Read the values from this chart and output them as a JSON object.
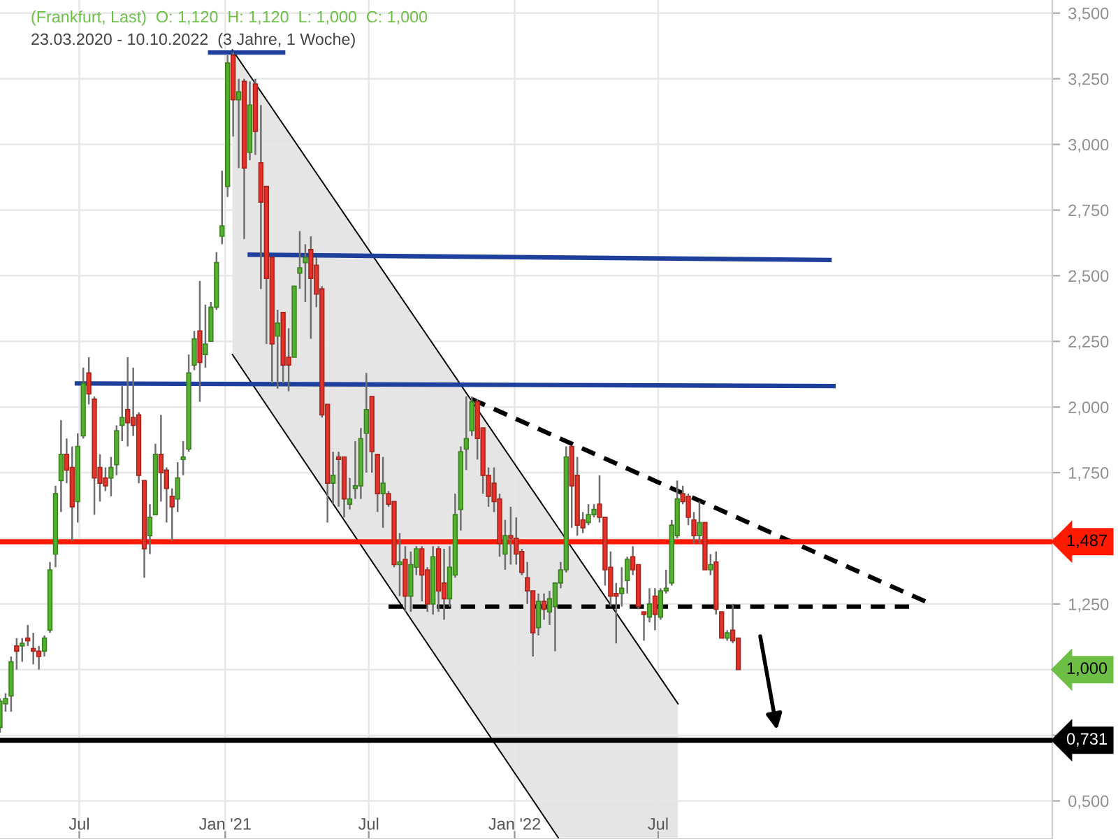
{
  "chart_data": {
    "type": "candlestick",
    "title": "(Frankfurt, Last)  O: 1,120  H: 1,120  L: 1,000  C: 1,000",
    "subtitle": "23.03.2020 - 10.10.2022  (3 Jahre, 1 Woche)",
    "x": [
      "2020-03-23",
      "2020-03-30",
      "2020-04-06",
      "2020-04-13",
      "2020-04-20",
      "2020-04-27",
      "2020-05-04",
      "2020-05-11",
      "2020-05-18",
      "2020-05-25",
      "2020-06-01",
      "2020-06-08",
      "2020-06-15",
      "2020-06-22",
      "2020-06-29",
      "2020-07-06",
      "2020-07-13",
      "2020-07-20",
      "2020-07-27",
      "2020-08-03",
      "2020-08-10",
      "2020-08-17",
      "2020-08-24",
      "2020-08-31",
      "2020-09-07",
      "2020-09-14",
      "2020-09-21",
      "2020-09-28",
      "2020-10-05",
      "2020-10-12",
      "2020-10-19",
      "2020-10-26",
      "2020-11-02",
      "2020-11-09",
      "2020-11-16",
      "2020-11-23",
      "2020-11-30",
      "2020-12-07",
      "2020-12-14",
      "2020-12-21",
      "2020-12-28",
      "2021-01-04",
      "2021-01-11",
      "2021-01-18",
      "2021-01-25",
      "2021-02-01",
      "2021-02-08",
      "2021-02-15",
      "2021-02-22",
      "2021-03-01",
      "2021-03-08",
      "2021-03-15",
      "2021-03-22",
      "2021-03-29",
      "2021-04-05",
      "2021-04-12",
      "2021-04-19",
      "2021-04-26",
      "2021-05-03",
      "2021-05-10",
      "2021-05-17",
      "2021-05-24",
      "2021-05-31",
      "2021-06-07",
      "2021-06-14",
      "2021-06-21",
      "2021-06-28",
      "2021-07-05",
      "2021-07-12",
      "2021-07-19",
      "2021-07-26",
      "2021-08-02",
      "2021-08-09",
      "2021-08-16",
      "2021-08-23",
      "2021-08-30",
      "2021-09-06",
      "2021-09-13",
      "2021-09-20",
      "2021-09-27",
      "2021-10-04",
      "2021-10-11",
      "2021-10-18",
      "2021-10-25",
      "2021-11-01",
      "2021-11-08",
      "2021-11-15",
      "2021-11-22",
      "2021-11-29",
      "2021-12-06",
      "2021-12-13",
      "2021-12-20",
      "2021-12-27",
      "2022-01-03",
      "2022-01-10",
      "2022-01-17",
      "2022-01-24",
      "2022-01-31",
      "2022-02-07",
      "2022-02-14",
      "2022-02-21",
      "2022-02-28",
      "2022-03-07",
      "2022-03-14",
      "2022-03-21",
      "2022-03-28",
      "2022-04-04",
      "2022-04-11",
      "2022-04-18",
      "2022-04-25",
      "2022-05-02",
      "2022-05-09",
      "2022-05-16",
      "2022-05-23",
      "2022-05-30",
      "2022-06-06",
      "2022-06-13",
      "2022-06-20",
      "2022-06-27",
      "2022-07-04",
      "2022-07-11",
      "2022-07-18",
      "2022-07-25",
      "2022-08-01",
      "2022-08-08",
      "2022-08-15",
      "2022-08-22",
      "2022-08-29",
      "2022-09-05",
      "2022-09-12",
      "2022-09-19",
      "2022-09-26",
      "2022-10-03",
      "2022-10-10"
    ],
    "ohlc": [
      [
        0.78,
        0.89,
        0.76,
        0.88
      ],
      [
        0.87,
        0.91,
        0.84,
        0.89
      ],
      [
        0.9,
        1.05,
        0.84,
        1.03
      ],
      [
        1.09,
        1.12,
        1.0,
        1.07
      ],
      [
        1.09,
        1.12,
        1.03,
        1.1
      ],
      [
        1.12,
        1.17,
        1.09,
        1.11
      ],
      [
        1.08,
        1.14,
        1.02,
        1.07
      ],
      [
        1.07,
        1.09,
        1.0,
        1.05
      ],
      [
        1.07,
        1.13,
        1.05,
        1.12
      ],
      [
        1.15,
        1.41,
        1.14,
        1.38
      ],
      [
        1.44,
        1.7,
        1.39,
        1.67
      ],
      [
        1.72,
        1.95,
        1.6,
        1.82
      ],
      [
        1.82,
        1.88,
        1.71,
        1.76
      ],
      [
        1.77,
        1.85,
        1.49,
        1.62
      ],
      [
        1.64,
        1.9,
        1.56,
        1.85
      ],
      [
        1.89,
        2.15,
        1.88,
        2.09
      ],
      [
        2.13,
        2.19,
        2.01,
        2.05
      ],
      [
        2.03,
        2.04,
        1.59,
        1.73
      ],
      [
        1.77,
        1.82,
        1.64,
        1.71
      ],
      [
        1.73,
        1.77,
        1.68,
        1.7
      ],
      [
        1.73,
        1.81,
        1.66,
        1.77
      ],
      [
        1.78,
        1.93,
        1.74,
        1.91
      ],
      [
        1.93,
        2.08,
        1.87,
        1.96
      ],
      [
        1.99,
        2.19,
        1.85,
        1.94
      ],
      [
        1.96,
        2.15,
        1.89,
        1.93
      ],
      [
        1.97,
        1.98,
        1.71,
        1.74
      ],
      [
        1.72,
        1.72,
        1.35,
        1.46
      ],
      [
        1.51,
        1.63,
        1.44,
        1.58
      ],
      [
        1.59,
        1.86,
        1.59,
        1.82
      ],
      [
        1.82,
        1.97,
        1.64,
        1.75
      ],
      [
        1.76,
        1.77,
        1.56,
        1.69
      ],
      [
        1.66,
        1.69,
        1.49,
        1.62
      ],
      [
        1.65,
        1.79,
        1.6,
        1.73
      ],
      [
        1.8,
        1.87,
        1.74,
        1.81
      ],
      [
        1.84,
        2.2,
        1.83,
        2.13
      ],
      [
        2.16,
        2.29,
        2.14,
        2.26
      ],
      [
        2.29,
        2.48,
        2.02,
        2.17
      ],
      [
        2.2,
        2.39,
        2.15,
        2.24
      ],
      [
        2.25,
        2.4,
        2.25,
        2.38
      ],
      [
        2.38,
        2.59,
        2.37,
        2.55
      ],
      [
        2.65,
        2.9,
        2.62,
        2.69
      ],
      [
        2.84,
        3.34,
        2.8,
        3.31
      ],
      [
        3.34,
        3.35,
        3.03,
        3.17
      ],
      [
        3.17,
        3.25,
        2.91,
        3.2
      ],
      [
        3.24,
        3.25,
        2.64,
        2.91
      ],
      [
        2.97,
        3.24,
        2.94,
        3.15
      ],
      [
        3.23,
        3.25,
        2.96,
        3.05
      ],
      [
        2.93,
        3.15,
        2.45,
        2.78
      ],
      [
        2.84,
        2.84,
        2.24,
        2.49
      ],
      [
        2.57,
        2.57,
        2.09,
        2.24
      ],
      [
        2.27,
        2.37,
        2.07,
        2.32
      ],
      [
        2.36,
        2.36,
        2.09,
        2.16
      ],
      [
        2.19,
        2.3,
        2.06,
        2.16
      ],
      [
        2.19,
        2.46,
        2.19,
        2.46
      ],
      [
        2.51,
        2.67,
        2.45,
        2.53
      ],
      [
        2.55,
        2.62,
        2.4,
        2.57
      ],
      [
        2.6,
        2.65,
        2.26,
        2.49
      ],
      [
        2.54,
        2.57,
        2.38,
        2.43
      ],
      [
        2.45,
        2.46,
        1.96,
        1.97
      ],
      [
        2.01,
        2.01,
        1.56,
        1.71
      ],
      [
        1.71,
        1.83,
        1.63,
        1.74
      ],
      [
        1.81,
        1.83,
        1.62,
        1.8
      ],
      [
        1.81,
        1.81,
        1.58,
        1.65
      ],
      [
        1.63,
        1.73,
        1.61,
        1.65
      ],
      [
        1.69,
        1.87,
        1.65,
        1.7
      ],
      [
        1.7,
        1.92,
        1.65,
        1.88
      ],
      [
        1.9,
        2.13,
        1.75,
        1.99
      ],
      [
        2.04,
        2.04,
        1.75,
        1.83
      ],
      [
        1.82,
        1.82,
        1.6,
        1.67
      ],
      [
        1.67,
        1.81,
        1.54,
        1.71
      ],
      [
        1.67,
        1.68,
        1.62,
        1.63
      ],
      [
        1.64,
        1.64,
        1.39,
        1.4
      ],
      [
        1.4,
        1.52,
        1.28,
        1.41
      ],
      [
        1.42,
        1.47,
        1.22,
        1.28
      ],
      [
        1.28,
        1.45,
        1.22,
        1.4
      ],
      [
        1.39,
        1.47,
        1.36,
        1.46
      ],
      [
        1.46,
        1.47,
        1.26,
        1.36
      ],
      [
        1.38,
        1.39,
        1.22,
        1.25
      ],
      [
        1.25,
        1.47,
        1.21,
        1.43
      ],
      [
        1.46,
        1.47,
        1.22,
        1.3
      ],
      [
        1.33,
        1.46,
        1.19,
        1.27
      ],
      [
        1.27,
        1.47,
        1.24,
        1.39
      ],
      [
        1.36,
        1.67,
        1.35,
        1.59
      ],
      [
        1.61,
        1.85,
        1.53,
        1.83
      ],
      [
        1.84,
        2.04,
        1.76,
        1.88
      ],
      [
        1.91,
        2.04,
        1.89,
        2.02
      ],
      [
        2.02,
        2.03,
        1.8,
        1.88
      ],
      [
        1.92,
        1.92,
        1.67,
        1.74
      ],
      [
        1.74,
        1.77,
        1.62,
        1.66
      ],
      [
        1.71,
        1.77,
        1.6,
        1.64
      ],
      [
        1.65,
        1.67,
        1.43,
        1.48
      ],
      [
        1.44,
        1.57,
        1.38,
        1.51
      ],
      [
        1.51,
        1.62,
        1.4,
        1.5
      ],
      [
        1.5,
        1.58,
        1.4,
        1.44
      ],
      [
        1.45,
        1.46,
        1.36,
        1.37
      ],
      [
        1.35,
        1.41,
        1.25,
        1.3
      ],
      [
        1.3,
        1.3,
        1.05,
        1.14
      ],
      [
        1.16,
        1.29,
        1.13,
        1.26
      ],
      [
        1.26,
        1.29,
        1.19,
        1.23
      ],
      [
        1.22,
        1.3,
        1.17,
        1.27
      ],
      [
        1.24,
        1.33,
        1.07,
        1.33
      ],
      [
        1.33,
        1.41,
        1.31,
        1.38
      ],
      [
        1.38,
        1.85,
        1.37,
        1.81
      ],
      [
        1.85,
        1.85,
        1.54,
        1.7
      ],
      [
        1.74,
        1.81,
        1.51,
        1.55
      ],
      [
        1.57,
        1.6,
        1.52,
        1.54
      ],
      [
        1.56,
        1.63,
        1.55,
        1.59
      ],
      [
        1.59,
        1.63,
        1.58,
        1.61
      ],
      [
        1.63,
        1.74,
        1.56,
        1.58
      ],
      [
        1.58,
        1.58,
        1.32,
        1.38
      ],
      [
        1.39,
        1.45,
        1.24,
        1.28
      ],
      [
        1.29,
        1.33,
        1.1,
        1.28
      ],
      [
        1.29,
        1.39,
        1.24,
        1.31
      ],
      [
        1.34,
        1.43,
        1.29,
        1.42
      ],
      [
        1.43,
        1.47,
        1.36,
        1.38
      ],
      [
        1.4,
        1.4,
        1.23,
        1.24
      ],
      [
        1.22,
        1.22,
        1.11,
        1.21
      ],
      [
        1.2,
        1.31,
        1.18,
        1.25
      ],
      [
        1.28,
        1.31,
        1.15,
        1.21
      ],
      [
        1.2,
        1.31,
        1.19,
        1.3
      ],
      [
        1.3,
        1.38,
        1.29,
        1.31
      ],
      [
        1.33,
        1.57,
        1.32,
        1.55
      ],
      [
        1.51,
        1.72,
        1.5,
        1.65
      ],
      [
        1.67,
        1.7,
        1.63,
        1.64
      ],
      [
        1.66,
        1.67,
        1.55,
        1.58
      ],
      [
        1.57,
        1.6,
        1.48,
        1.51
      ],
      [
        1.51,
        1.64,
        1.48,
        1.56
      ],
      [
        1.56,
        1.56,
        1.38,
        1.38
      ],
      [
        1.38,
        1.44,
        1.36,
        1.4
      ],
      [
        1.41,
        1.45,
        1.21,
        1.23
      ],
      [
        1.22,
        1.22,
        1.12,
        1.12
      ],
      [
        1.12,
        1.15,
        1.11,
        1.14
      ],
      [
        1.15,
        1.25,
        1.1,
        1.11
      ],
      [
        1.12,
        1.12,
        1.0,
        1.0
      ]
    ],
    "colors": [
      "#55b22e",
      "#55b22e",
      "#55b22e",
      "#e5332a",
      "#55b22e",
      "#e5332a",
      "#e5332a",
      "#e5332a",
      "#55b22e",
      "#55b22e",
      "#55b22e",
      "#55b22e",
      "#e5332a",
      "#e5332a",
      "#55b22e",
      "#55b22e",
      "#e5332a",
      "#e5332a",
      "#e5332a",
      "#e5332a",
      "#55b22e",
      "#55b22e",
      "#55b22e",
      "#e5332a",
      "#e5332a",
      "#e5332a",
      "#e5332a",
      "#55b22e",
      "#55b22e",
      "#e5332a",
      "#e5332a",
      "#e5332a",
      "#55b22e",
      "#55b22e",
      "#55b22e",
      "#55b22e",
      "#e5332a",
      "#55b22e",
      "#55b22e",
      "#55b22e",
      "#55b22e",
      "#55b22e",
      "#e5332a",
      "#55b22e",
      "#e5332a",
      "#55b22e",
      "#e5332a",
      "#e5332a",
      "#e5332a",
      "#e5332a",
      "#55b22e",
      "#e5332a",
      "#e5332a",
      "#55b22e",
      "#55b22e",
      "#55b22e",
      "#e5332a",
      "#e5332a",
      "#e5332a",
      "#e5332a",
      "#55b22e",
      "#e5332a",
      "#e5332a",
      "#55b22e",
      "#55b22e",
      "#55b22e",
      "#55b22e",
      "#e5332a",
      "#e5332a",
      "#55b22e",
      "#e5332a",
      "#e5332a",
      "#55b22e",
      "#e5332a",
      "#55b22e",
      "#55b22e",
      "#e5332a",
      "#e5332a",
      "#55b22e",
      "#e5332a",
      "#e5332a",
      "#55b22e",
      "#55b22e",
      "#55b22e",
      "#55b22e",
      "#55b22e",
      "#e5332a",
      "#e5332a",
      "#e5332a",
      "#e5332a",
      "#e5332a",
      "#55b22e",
      "#e5332a",
      "#e5332a",
      "#e5332a",
      "#e5332a",
      "#e5332a",
      "#55b22e",
      "#e5332a",
      "#55b22e",
      "#55b22e",
      "#55b22e",
      "#55b22e",
      "#e5332a",
      "#e5332a",
      "#e5332a",
      "#55b22e",
      "#55b22e",
      "#e5332a",
      "#e5332a",
      "#e5332a",
      "#e5332a",
      "#55b22e",
      "#55b22e",
      "#e5332a",
      "#e5332a",
      "#e5332a",
      "#55b22e",
      "#e5332a",
      "#55b22e",
      "#55b22e",
      "#55b22e",
      "#55b22e",
      "#e5332a",
      "#e5332a",
      "#e5332a",
      "#55b22e",
      "#e5332a",
      "#55b22e",
      "#e5332a",
      "#e5332a",
      "#55b22e",
      "#e5332a",
      "#e5332a"
    ],
    "series": [
      {
        "type": "line",
        "color": "#000000",
        "x": [
          "2021-01-10",
          "2022-02-25",
          "2022-07-26"
        ],
        "values": [
          3.36,
          1.54,
          0.87
        ],
        "lower": [
          2.2,
          0.36,
          0.36
        ],
        "upper": [
          3.36,
          1.54,
          0.87
        ]
      },
      {
        "type": "line",
        "color": "#000000",
        "x": [
          "2021-01-10",
          "2022-02-25"
        ],
        "values": [
          2.2,
          0.36
        ]
      },
      {
        "type": "line",
        "color": "#1f3f9c",
        "x": [
          "2020-12-13",
          "2021-03-15"
        ],
        "values": [
          3.35,
          3.35
        ]
      },
      {
        "type": "line",
        "color": "#1f3f9c",
        "x": [
          "2021-02-01",
          "2023-02-02"
        ],
        "values": [
          2.58,
          2.56
        ]
      },
      {
        "type": "line",
        "color": "#1f3f9c",
        "x": [
          "2020-06-28",
          "2023-02-07"
        ],
        "values": [
          2.09,
          2.08
        ]
      },
      {
        "type": "line",
        "color": "#000000",
        "line_style": "dashed",
        "x": [
          "2021-11-08",
          "2023-06-10"
        ],
        "values": [
          2.03,
          1.25
        ]
      },
      {
        "type": "line",
        "color": "#000000",
        "line_style": "dashed",
        "x": [
          "2021-07-26",
          "2023-05-14"
        ],
        "values": [
          1.24,
          1.24
        ]
      }
    ],
    "xlim": [
      "2020-03-23",
      "2023-11-10"
    ],
    "xticks": [
      {
        "value": "2020-07-01",
        "label": "Jul"
      },
      {
        "value": "2021-01-01",
        "label": "Jan '21"
      },
      {
        "value": "2021-07-01",
        "label": "Jul"
      },
      {
        "value": "2022-01-01",
        "label": "Jan '22"
      },
      {
        "value": "2022-07-01",
        "label": "Jul"
      }
    ],
    "ylim": [
      0.355,
      3.55
    ],
    "yticks": [
      {
        "value": 0.5,
        "label": "0,500"
      },
      {
        "value": 0.75,
        "label": null
      },
      {
        "value": 1.0,
        "label": null
      },
      {
        "value": 1.25,
        "label": "1,250"
      },
      {
        "value": 1.5,
        "label": null
      },
      {
        "value": 1.75,
        "label": "1,750"
      },
      {
        "value": 2.0,
        "label": "2,000"
      },
      {
        "value": 2.25,
        "label": "2,250"
      },
      {
        "value": 2.5,
        "label": "2,500"
      },
      {
        "value": 2.75,
        "label": "2,750"
      },
      {
        "value": 3.0,
        "label": "3,000"
      },
      {
        "value": 3.25,
        "label": "3,250"
      },
      {
        "value": 3.5,
        "label": "3,500"
      }
    ],
    "ref_lines": [
      {
        "axis": "y",
        "value": 1.487,
        "label": "1,487",
        "color": "#ff1a00"
      },
      {
        "axis": "y",
        "value": 0.731,
        "label": "0,731",
        "color": "#000000"
      }
    ],
    "annotations": [
      "1,000"
    ],
    "grid": true
  }
}
